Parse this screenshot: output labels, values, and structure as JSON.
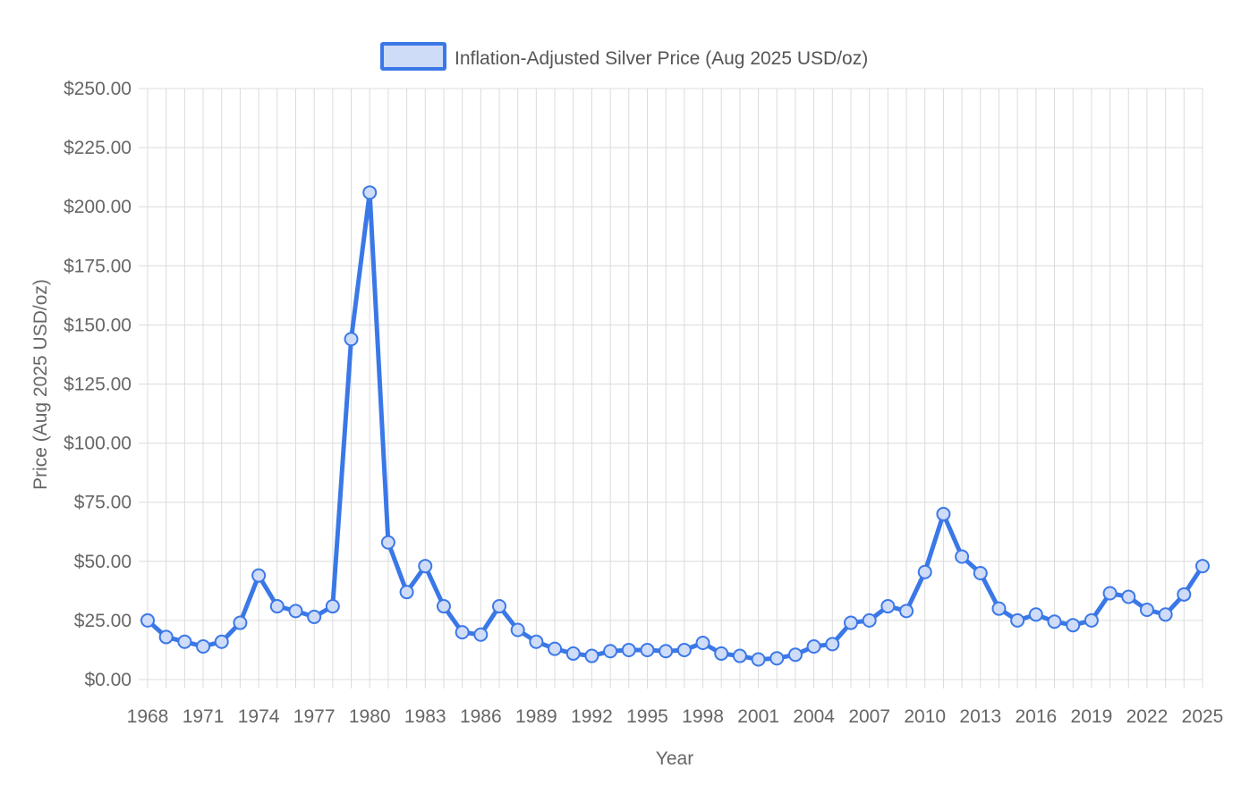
{
  "chart_data": {
    "type": "line",
    "title": "",
    "legend": {
      "label": "Inflation-Adjusted Silver Price (Aug 2025 USD/oz)",
      "position": "top-center"
    },
    "xlabel": "Year",
    "ylabel": "Price (Aug 2025 USD/oz)",
    "ylim": [
      0,
      250
    ],
    "y_ticks": [
      0,
      25,
      50,
      75,
      100,
      125,
      150,
      175,
      200,
      225,
      250
    ],
    "y_tick_labels": [
      "$0.00",
      "$25.00",
      "$50.00",
      "$75.00",
      "$100.00",
      "$125.00",
      "$150.00",
      "$175.00",
      "$200.00",
      "$225.00",
      "$250.00"
    ],
    "x_tick_labels": [
      "1968",
      "1971",
      "1974",
      "1977",
      "1980",
      "1983",
      "1986",
      "1989",
      "1992",
      "1995",
      "1998",
      "2001",
      "2004",
      "2007",
      "2010",
      "2013",
      "2016",
      "2019",
      "2022",
      "2025"
    ],
    "grid": true,
    "colors": {
      "line": "#3b78e7",
      "point_fill": "#cfdcf7",
      "legend_fill": "#cfdcf7",
      "grid": "#dcdcdc",
      "text": "#666666"
    },
    "series": [
      {
        "name": "Inflation-Adjusted Silver Price (Aug 2025 USD/oz)",
        "x": [
          1968,
          1969,
          1970,
          1971,
          1972,
          1973,
          1974,
          1975,
          1976,
          1977,
          1978,
          1979,
          1980,
          1981,
          1982,
          1983,
          1984,
          1985,
          1986,
          1987,
          1988,
          1989,
          1990,
          1991,
          1992,
          1993,
          1994,
          1995,
          1996,
          1997,
          1998,
          1999,
          2000,
          2001,
          2002,
          2003,
          2004,
          2005,
          2006,
          2007,
          2008,
          2009,
          2010,
          2011,
          2012,
          2013,
          2014,
          2015,
          2016,
          2017,
          2018,
          2019,
          2020,
          2021,
          2022,
          2023,
          2024,
          2025
        ],
        "values": [
          25,
          18,
          16,
          14,
          16,
          24,
          44,
          31,
          29,
          26.5,
          31,
          144,
          206,
          58,
          37,
          48,
          31,
          20,
          19,
          31,
          21,
          16,
          13,
          11,
          10,
          12,
          12.5,
          12.5,
          12,
          12.5,
          15.5,
          11,
          10,
          8.5,
          9,
          10.5,
          14,
          15,
          24,
          25,
          31,
          29,
          45.5,
          70,
          52,
          45,
          30,
          25,
          27.5,
          24.5,
          23,
          25,
          36.5,
          35,
          29.5,
          27.5,
          36,
          48
        ]
      }
    ]
  }
}
